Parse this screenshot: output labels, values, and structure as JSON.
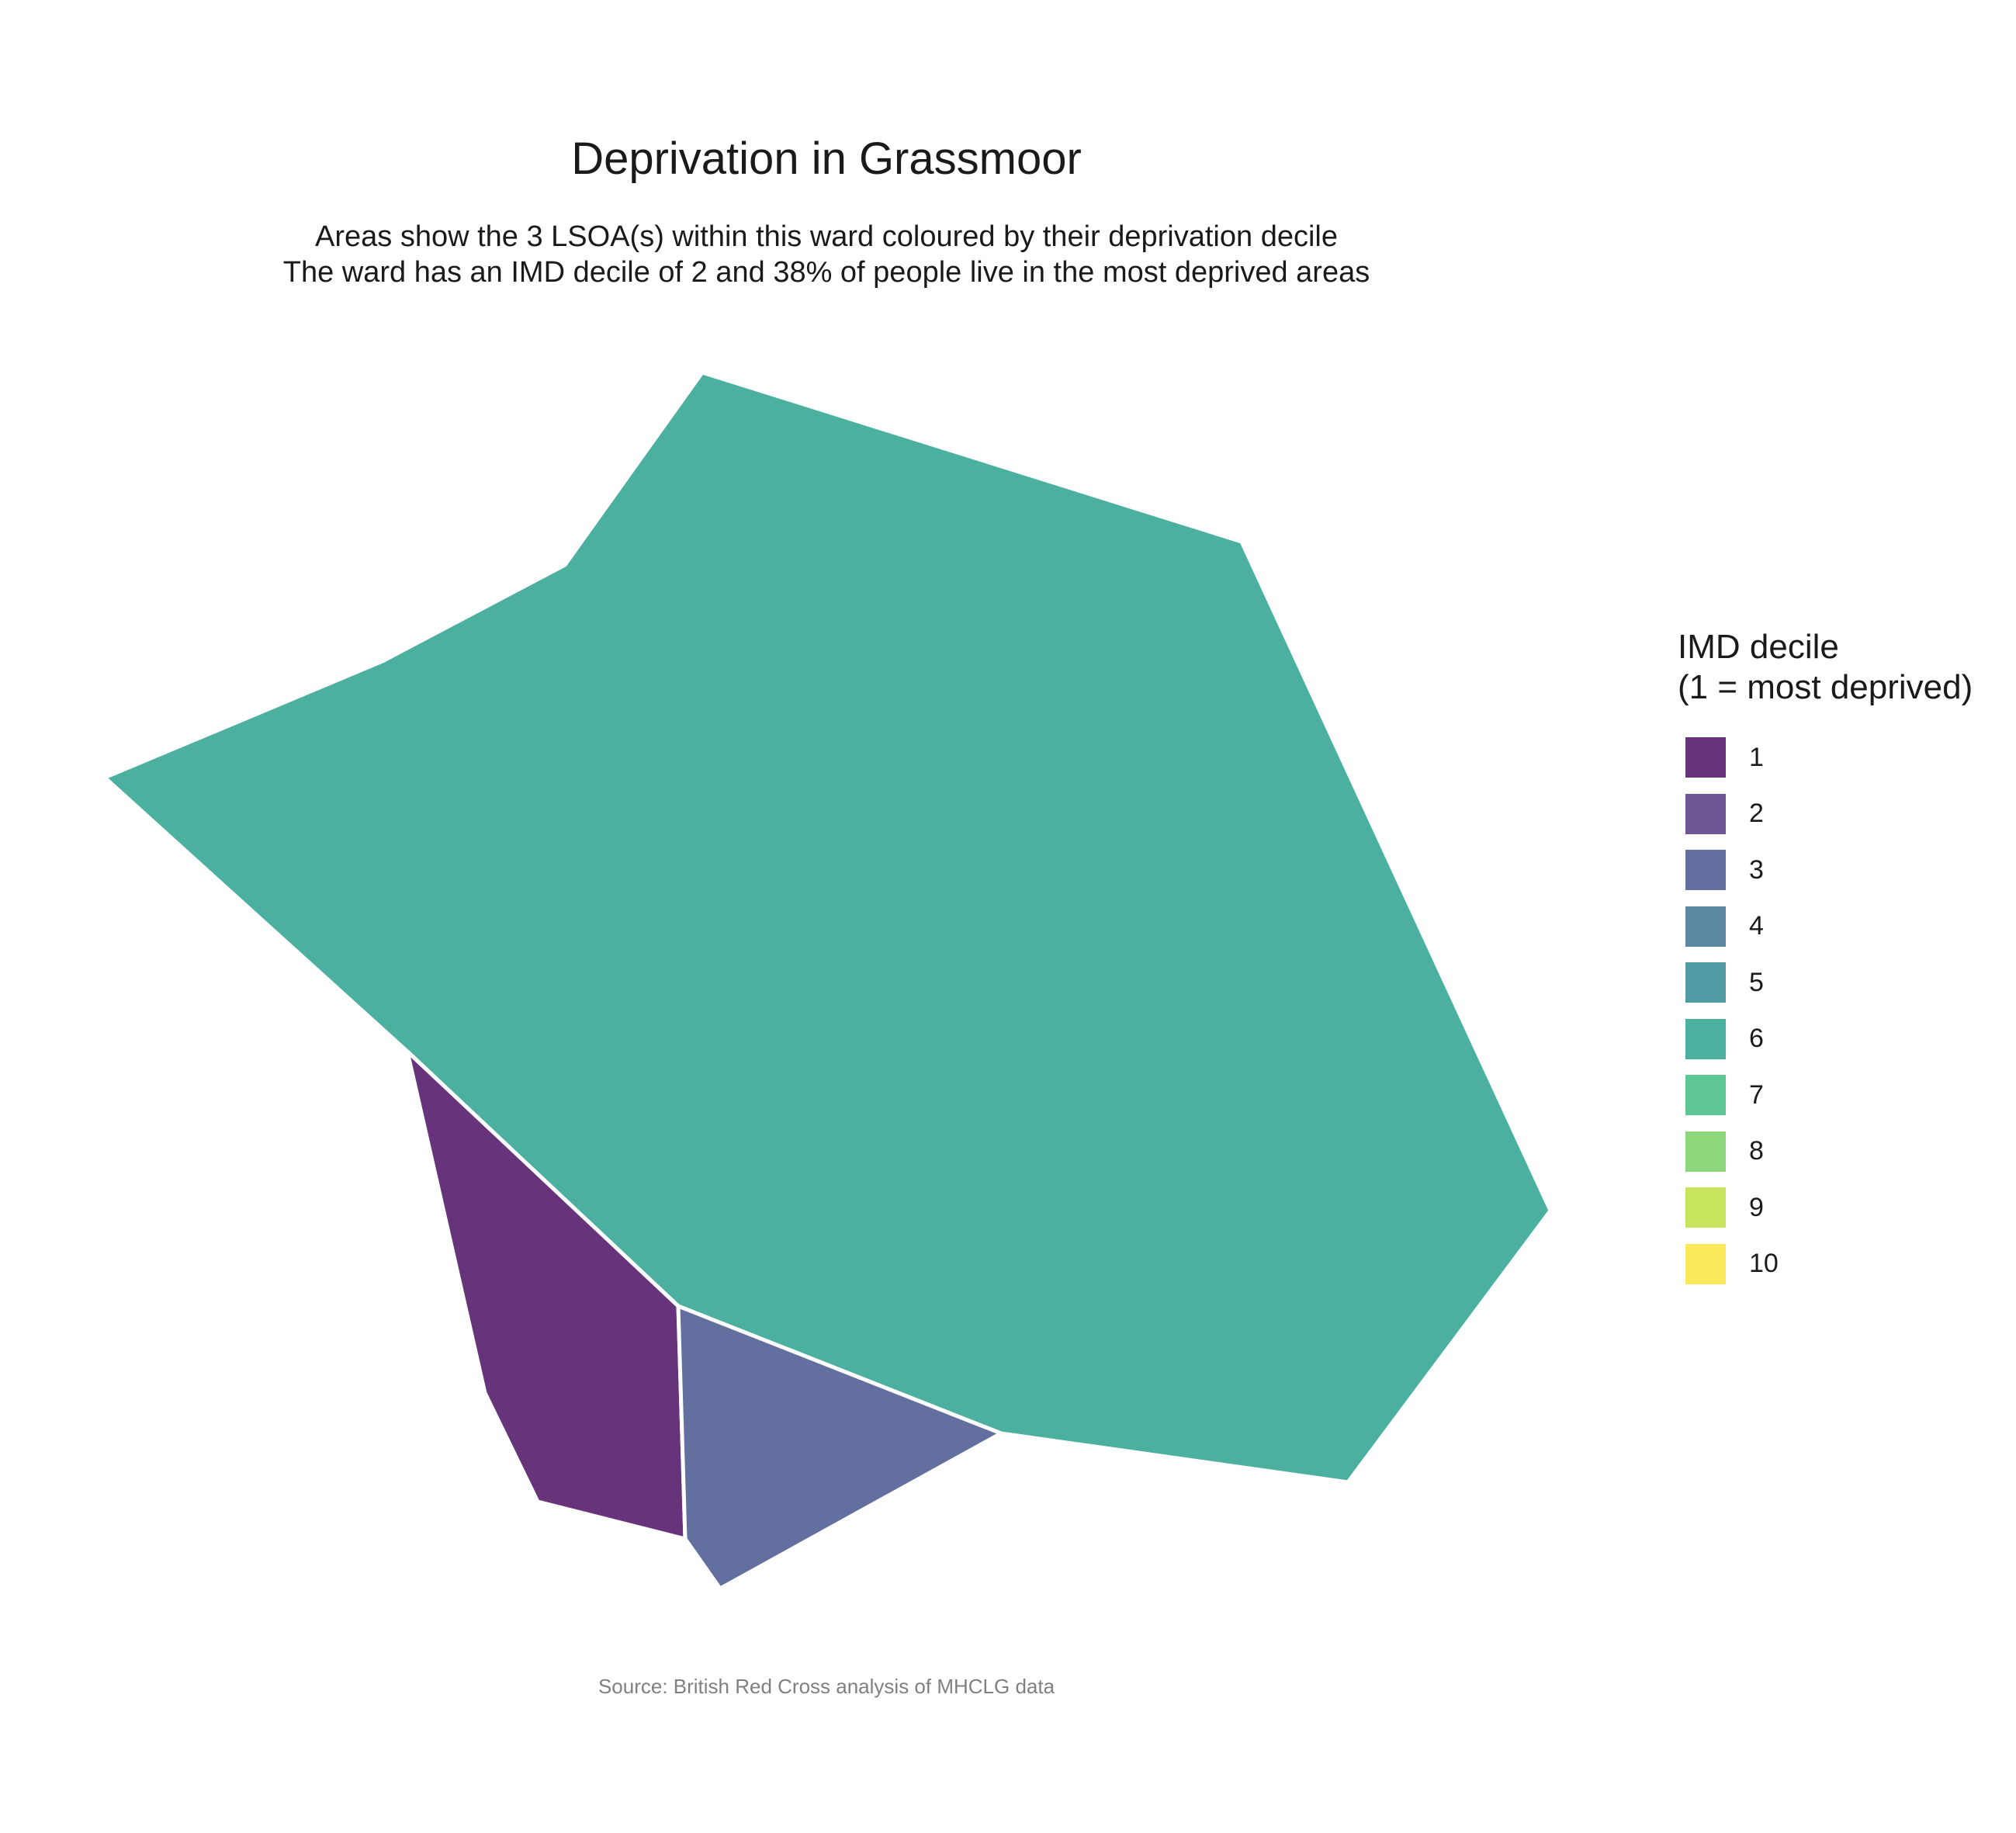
{
  "title": "Deprivation in Grassmoor",
  "subtitle_line1": "Areas show the 3 LSOA(s) within this ward coloured by their deprivation decile",
  "subtitle_line2": "The ward has an IMD decile of 2 and 38% of people live in the most deprived areas",
  "caption": "Source: British Red Cross analysis of MHCLG data",
  "legend": {
    "title_line1": "IMD decile",
    "title_line2": "(1 = most deprived)",
    "items": [
      {
        "label": "1",
        "color": "#67337A"
      },
      {
        "label": "2",
        "color": "#6E5697"
      },
      {
        "label": "3",
        "color": "#636F9F"
      },
      {
        "label": "4",
        "color": "#5B87A2"
      },
      {
        "label": "5",
        "color": "#529CA6"
      },
      {
        "label": "6",
        "color": "#4CB0A1"
      },
      {
        "label": "7",
        "color": "#5EC695"
      },
      {
        "label": "8",
        "color": "#8FD77D"
      },
      {
        "label": "9",
        "color": "#C6E55D"
      },
      {
        "label": "10",
        "color": "#FBE95A"
      }
    ]
  },
  "chart_data": {
    "type": "choropleth",
    "areas": [
      {
        "lsoa_index": 1,
        "imd_decile": 6
      },
      {
        "lsoa_index": 2,
        "imd_decile": 1
      },
      {
        "lsoa_index": 3,
        "imd_decile": 3
      }
    ]
  }
}
